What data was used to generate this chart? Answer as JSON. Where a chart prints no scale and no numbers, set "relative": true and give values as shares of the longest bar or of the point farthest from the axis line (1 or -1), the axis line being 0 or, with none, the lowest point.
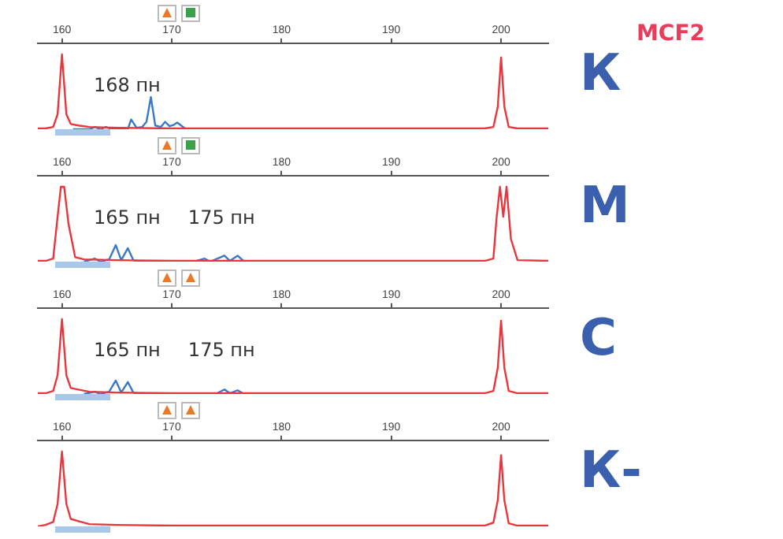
{
  "chart_data": [
    {
      "type": "line",
      "relative": true,
      "tick_labels": "x",
      "grid": false,
      "legend": false,
      "marker": "none",
      "xlim": [
        157.8,
        204.3
      ],
      "xticks": [
        160,
        170,
        180,
        190,
        200
      ],
      "annotations": [
        "168 пн",
        "MCF2",
        "К"
      ],
      "series": [
        {
          "color": "#e8363c",
          "x": [
            157.8,
            158.5,
            159.2,
            159.6,
            160,
            160.4,
            160.8,
            161.5,
            162.5,
            165,
            170,
            175,
            180,
            185,
            190,
            195,
            198.5,
            199.3,
            199.7,
            200,
            200.3,
            200.7,
            201.5,
            204.3
          ],
          "values": [
            0.01,
            0.01,
            0.03,
            0.2,
            1,
            0.2,
            0.07,
            0.05,
            0.03,
            0.02,
            0.01,
            0.01,
            0.01,
            0.01,
            0.01,
            0.01,
            0.01,
            0.03,
            0.3,
            0.96,
            0.3,
            0.03,
            0.01,
            0.01
          ]
        },
        {
          "color": "#3a78c9",
          "x": [
            161,
            162.5,
            163,
            163.5,
            164,
            164.5,
            165,
            166,
            166.3,
            166.8,
            167.3,
            167.7,
            168.1,
            168.5,
            169,
            169.4,
            169.8,
            170.2,
            170.5,
            171.2,
            173
          ],
          "values": [
            0,
            0,
            0.03,
            0,
            0.03,
            0,
            0,
            0,
            0.13,
            0.02,
            0.03,
            0.1,
            0.43,
            0.05,
            0.03,
            0.1,
            0.04,
            0.06,
            0.09,
            0.01,
            0
          ]
        }
      ]
    },
    {
      "type": "line",
      "relative": true,
      "tick_labels": "x",
      "grid": false,
      "legend": false,
      "marker": "none",
      "xlim": [
        157.8,
        204.3
      ],
      "xticks": [
        160,
        170,
        180,
        190,
        200
      ],
      "annotations": [
        "165 пн",
        "175 пн",
        "М"
      ],
      "series": [
        {
          "color": "#e8363c",
          "x": [
            157.8,
            158.5,
            159.2,
            159.6,
            159.9,
            160.2,
            160.6,
            161.2,
            162,
            165,
            170,
            175,
            180,
            185,
            190,
            195,
            198.5,
            199.3,
            199.6,
            199.9,
            200.2,
            200.5,
            200.9,
            201.5,
            204.3
          ],
          "values": [
            0.01,
            0.01,
            0.04,
            0.6,
            1,
            1,
            0.5,
            0.06,
            0.03,
            0.02,
            0.01,
            0.01,
            0.01,
            0.01,
            0.01,
            0.01,
            0.01,
            0.04,
            0.6,
            1,
            0.6,
            1,
            0.3,
            0.02,
            0.01
          ]
        },
        {
          "color": "#3a78c9",
          "x": [
            162,
            163,
            163.5,
            164.3,
            164.9,
            165.4,
            166,
            166.5,
            167,
            172,
            173,
            173.5,
            174,
            174.8,
            175.3,
            176,
            176.6,
            177.5
          ],
          "values": [
            0,
            0.04,
            0,
            0.03,
            0.22,
            0.02,
            0.18,
            0.02,
            0,
            0,
            0.04,
            0,
            0.03,
            0.08,
            0.01,
            0.08,
            0,
            0
          ]
        }
      ]
    },
    {
      "type": "line",
      "relative": true,
      "tick_labels": "x",
      "grid": false,
      "legend": false,
      "marker": "none",
      "xlim": [
        157.8,
        204.3
      ],
      "xticks": [
        160,
        170,
        180,
        190,
        200
      ],
      "annotations": [
        "165 пн",
        "175 пн",
        "С"
      ],
      "series": [
        {
          "color": "#e8363c",
          "x": [
            157.8,
            158.5,
            159.2,
            159.6,
            160,
            160.4,
            160.8,
            161.5,
            162.5,
            165,
            170,
            175,
            180,
            185,
            190,
            195,
            198.5,
            199.3,
            199.7,
            200,
            200.3,
            200.7,
            201.5,
            204.3
          ],
          "values": [
            0.01,
            0.01,
            0.04,
            0.25,
            1,
            0.25,
            0.08,
            0.06,
            0.03,
            0.02,
            0.01,
            0.01,
            0.01,
            0.01,
            0.01,
            0.01,
            0.01,
            0.04,
            0.35,
            0.98,
            0.35,
            0.04,
            0.01,
            0.01
          ]
        },
        {
          "color": "#3a78c9",
          "x": [
            162,
            163,
            163.5,
            164.3,
            164.9,
            165.4,
            166,
            166.5,
            167,
            172,
            174,
            174.8,
            175.3,
            176,
            176.6,
            177.5
          ],
          "values": [
            0,
            0.03,
            0,
            0.03,
            0.18,
            0.02,
            0.16,
            0.02,
            0,
            0,
            0,
            0.06,
            0.01,
            0.05,
            0,
            0
          ]
        }
      ]
    },
    {
      "type": "line",
      "relative": true,
      "tick_labels": "x",
      "grid": false,
      "legend": false,
      "marker": "none",
      "xlim": [
        157.8,
        204.3
      ],
      "xticks": [
        160,
        170,
        180,
        190,
        200
      ],
      "annotations": [
        "К-"
      ],
      "series": [
        {
          "color": "#e8363c",
          "x": [
            157.8,
            158.5,
            159.2,
            159.6,
            160,
            160.4,
            160.8,
            161.5,
            162.5,
            165,
            170,
            175,
            180,
            185,
            190,
            195,
            198.5,
            199.3,
            199.7,
            200,
            200.3,
            200.7,
            201.5,
            204.3
          ],
          "values": [
            0,
            0.02,
            0.06,
            0.3,
            1,
            0.3,
            0.1,
            0.07,
            0.03,
            0.02,
            0.01,
            0.01,
            0.01,
            0.01,
            0.01,
            0.01,
            0.01,
            0.05,
            0.35,
            0.95,
            0.35,
            0.04,
            0.01,
            0.01
          ]
        }
      ]
    }
  ]
}
